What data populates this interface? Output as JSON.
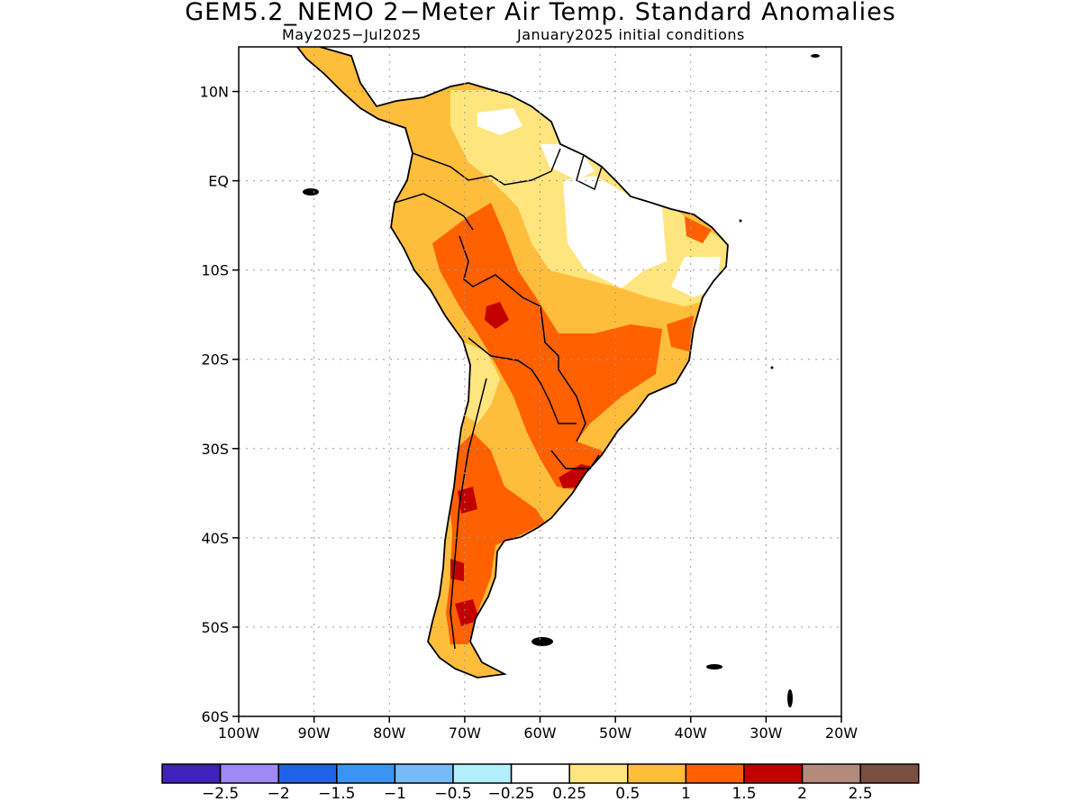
{
  "title": "GEM5.2_NEMO 2−Meter Air Temp. Standard Anomalies",
  "subtitle_left": "May2025−Jul2025",
  "subtitle_right": "January2025 initial conditions",
  "map": {
    "region": "South America",
    "lon_range": [
      -100,
      -20
    ],
    "lat_range": [
      -60,
      15
    ],
    "lat_ticks": [
      {
        "value": 10,
        "label": "10N"
      },
      {
        "value": 0,
        "label": "EQ"
      },
      {
        "value": -10,
        "label": "10S"
      },
      {
        "value": -20,
        "label": "20S"
      },
      {
        "value": -30,
        "label": "30S"
      },
      {
        "value": -40,
        "label": "40S"
      },
      {
        "value": -50,
        "label": "50S"
      },
      {
        "value": -60,
        "label": "60S"
      }
    ],
    "lon_ticks": [
      {
        "value": -100,
        "label": "100W"
      },
      {
        "value": -90,
        "label": "90W"
      },
      {
        "value": -80,
        "label": "80W"
      },
      {
        "value": -70,
        "label": "70W"
      },
      {
        "value": -60,
        "label": "60W"
      },
      {
        "value": -50,
        "label": "50W"
      },
      {
        "value": -40,
        "label": "40W"
      },
      {
        "value": -30,
        "label": "30W"
      },
      {
        "value": -20,
        "label": "20W"
      }
    ],
    "grid": "dotted"
  },
  "colorbar": {
    "colors": [
      "#3f22b9",
      "#9e89f5",
      "#1f62e5",
      "#3a94f2",
      "#78b9f7",
      "#b3eefb",
      "#ffffff",
      "#ffe57d",
      "#ffbd3c",
      "#ff6000",
      "#c20000",
      "#b38a7c",
      "#7a4f41"
    ],
    "labels": [
      "−2.5",
      "−2",
      "−1.5",
      "−1",
      "−0.5",
      "−0.25",
      "0.25",
      "0.5",
      "1",
      "1.5",
      "2",
      "2.5"
    ]
  },
  "anomaly_regions": [
    {
      "level": "0.5 to 1",
      "color": "#ffbd3c",
      "area": "most of South America"
    },
    {
      "level": "1 to 1.5",
      "color": "#ff6000",
      "area": "western Amazon, Bolivia, Paraguay, southern Brazil, Uruguay, Patagonia"
    },
    {
      "level": "1.5 to 2",
      "color": "#c20000",
      "area": "Bolivia, Uruguay, central and southern Chile/Argentina"
    },
    {
      "level": "0.25 to 0.5",
      "color": "#ffe57d",
      "area": "northeast Brazil, Venezuela, Andes"
    },
    {
      "level": "-0.25 to 0.25",
      "color": "#ffffff",
      "area": "northeastern Brazil, Guianas, northern Venezuela"
    }
  ]
}
